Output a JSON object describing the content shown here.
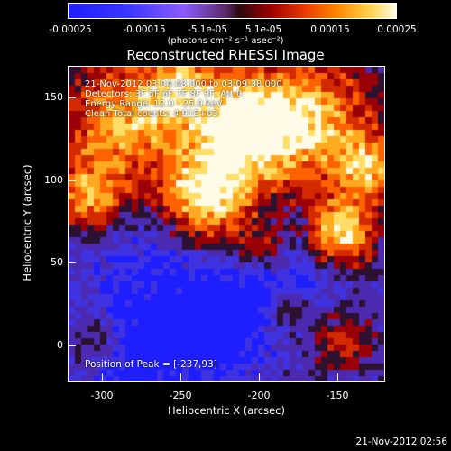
{
  "colorbar": {
    "ticks": [
      "-0.00025",
      "-0.00015",
      "-5.1e-05",
      "5.1e-05",
      "0.00015",
      "0.00025"
    ],
    "units": "(photons cm⁻² s⁻¹ asec⁻²)"
  },
  "title": "Reconstructed RHESSI Image",
  "annotations": {
    "time_range": "21-Nov-2012 03:04:48.000 to 03:09:38.000",
    "detectors": "Detectors: 3F 5F 6F 7F 8F 9F, Att 0",
    "energy": "Energy Range: 12.0 - 25.0 keV",
    "method": "Clean    Total counts: 4.91E+03",
    "peak": "Position of Peak = [-237,93]"
  },
  "axes": {
    "xlabel": "Heliocentric X (arcsec)",
    "ylabel": "Heliocentric Y (arcsec)",
    "xticks": [
      "-300",
      "-250",
      "-200",
      "-150"
    ],
    "yticks": [
      "0",
      "50",
      "100",
      "150"
    ]
  },
  "timestamp": "21-Nov-2012 02:56",
  "colors": {
    "cold": "#1f1fff",
    "mid": "#3a1f7a",
    "hot": "#ff6a00",
    "peak": "#fffbe6"
  }
}
